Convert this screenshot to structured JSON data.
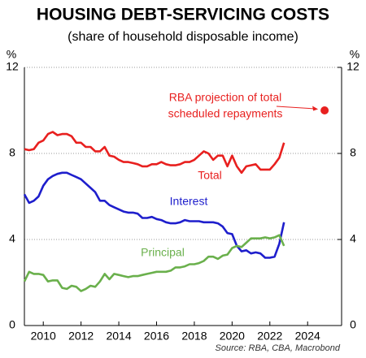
{
  "chart_data": {
    "type": "line",
    "title": "HOUSING DEBT-SERVICING COSTS",
    "subtitle": "(share of household disposable income)",
    "y_unit": "%",
    "y2_unit": "%",
    "source": "Source: RBA, CBA, Macrobond",
    "x": [
      2009,
      2009.25,
      2009.5,
      2009.75,
      2010,
      2010.25,
      2010.5,
      2010.75,
      2011,
      2011.25,
      2011.5,
      2011.75,
      2012,
      2012.25,
      2012.5,
      2012.75,
      2013,
      2013.25,
      2013.5,
      2013.75,
      2014,
      2014.25,
      2014.5,
      2014.75,
      2015,
      2015.25,
      2015.5,
      2015.75,
      2016,
      2016.25,
      2016.5,
      2016.75,
      2017,
      2017.25,
      2017.5,
      2017.75,
      2018,
      2018.25,
      2018.5,
      2018.75,
      2019,
      2019.25,
      2019.5,
      2019.75,
      2020,
      2020.25,
      2020.5,
      2020.75,
      2021,
      2021.25,
      2021.5,
      2021.75,
      2022,
      2022.25,
      2022.5,
      2022.75
    ],
    "series": [
      {
        "name": "Total",
        "color": "#e8201f",
        "values": [
          8.2,
          8.15,
          8.2,
          8.5,
          8.6,
          8.9,
          9.0,
          8.85,
          8.9,
          8.9,
          8.8,
          8.5,
          8.5,
          8.3,
          8.3,
          8.1,
          8.1,
          8.3,
          7.9,
          7.85,
          7.7,
          7.6,
          7.6,
          7.55,
          7.5,
          7.4,
          7.4,
          7.5,
          7.5,
          7.6,
          7.5,
          7.45,
          7.45,
          7.5,
          7.6,
          7.6,
          7.7,
          7.9,
          8.1,
          8.0,
          7.7,
          7.9,
          7.9,
          7.4,
          7.9,
          7.4,
          7.1,
          7.4,
          7.45,
          7.5,
          7.25,
          7.25,
          7.25,
          7.5,
          7.8,
          8.5
        ]
      },
      {
        "name": "Interest",
        "color": "#1e1ecc",
        "values": [
          6.1,
          5.7,
          5.8,
          6.0,
          6.5,
          6.8,
          6.95,
          7.05,
          7.1,
          7.1,
          7.0,
          6.9,
          6.8,
          6.6,
          6.4,
          6.2,
          5.8,
          5.8,
          5.6,
          5.5,
          5.4,
          5.3,
          5.25,
          5.25,
          5.2,
          5.0,
          5.0,
          5.05,
          4.95,
          4.9,
          4.8,
          4.75,
          4.75,
          4.8,
          4.9,
          4.85,
          4.85,
          4.85,
          4.8,
          4.8,
          4.8,
          4.75,
          4.6,
          4.3,
          4.25,
          3.7,
          3.45,
          3.5,
          3.35,
          3.4,
          3.35,
          3.15,
          3.15,
          3.2,
          3.8,
          4.8
        ]
      },
      {
        "name": "Principal",
        "color": "#6ab04c",
        "values": [
          2.05,
          2.5,
          2.4,
          2.4,
          2.35,
          2.05,
          2.1,
          2.1,
          1.75,
          1.7,
          1.85,
          1.8,
          1.6,
          1.7,
          1.85,
          1.8,
          2.05,
          2.4,
          2.15,
          2.4,
          2.35,
          2.3,
          2.25,
          2.3,
          2.3,
          2.35,
          2.4,
          2.45,
          2.5,
          2.5,
          2.5,
          2.55,
          2.7,
          2.7,
          2.75,
          2.85,
          2.85,
          2.9,
          3.0,
          3.2,
          3.2,
          3.1,
          3.25,
          3.3,
          3.6,
          3.7,
          3.65,
          3.85,
          4.05,
          4.05,
          4.05,
          4.1,
          4.05,
          4.1,
          4.2,
          3.7
        ]
      }
    ],
    "projection": {
      "label": [
        "RBA projection of total",
        "scheduled repayments"
      ],
      "x": 2024.9,
      "y": 10,
      "color": "#e8201f"
    },
    "xlim": [
      2009,
      2025.8
    ],
    "xticks": [
      2010,
      2012,
      2014,
      2016,
      2018,
      2020,
      2022,
      2024
    ],
    "ylim": [
      0,
      12
    ],
    "yticks": [
      0,
      4,
      8,
      12
    ],
    "y2lim": [
      0,
      12
    ],
    "y2ticks": [
      0,
      4,
      8,
      12
    ],
    "grid": true
  }
}
